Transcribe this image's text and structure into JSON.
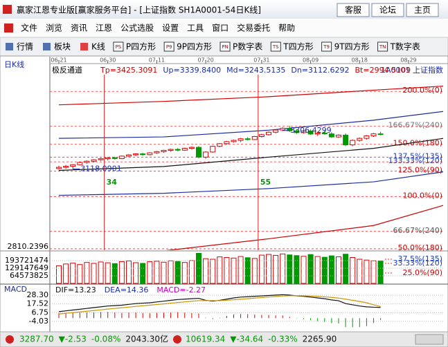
{
  "window": {
    "title": "赢家江恩专业版[赢家服务平台] - [上证指数  SH1A0001-54日K线]",
    "buttons": [
      "客服",
      "论坛",
      "主页"
    ]
  },
  "menu": [
    "文件",
    "浏览",
    "资讯",
    "江恩",
    "公式选股",
    "设置",
    "工具",
    "窗口",
    "交易委托",
    "帮助"
  ],
  "toolbar": [
    {
      "label": "行情"
    },
    {
      "label": "板块"
    },
    {
      "label": "K线"
    },
    {
      "icon": "PS",
      "label": "P四方形"
    },
    {
      "icon": "P9",
      "label": "9P四方形"
    },
    {
      "icon": "PN",
      "label": "P数字表"
    },
    {
      "icon": "TS",
      "label": "T四方形"
    },
    {
      "icon": "T9",
      "label": "9T四方形"
    },
    {
      "icon": "TN",
      "label": "T数字表"
    }
  ],
  "chart_data": {
    "type": "candlestick",
    "period_label": "日K线",
    "indicator": "极反通道",
    "header_items": [
      "Tp=3425.3091",
      "Up=3339.8400",
      "Md=3243.5135",
      "Dn=3112.6292",
      "Bt=2994.5109"
    ],
    "symbol": "1A0001 上证指数",
    "xlim": [
      -1.3,
      55
    ],
    "xticks": [
      {
        "value": 0,
        "label": "06-21"
      },
      {
        "value": 7,
        "label": "06-30"
      },
      {
        "value": 14,
        "label": "07-11"
      },
      {
        "value": 21,
        "label": "07-20"
      },
      {
        "value": 29,
        "label": "07-31"
      },
      {
        "value": 36,
        "label": "08-09"
      },
      {
        "value": 43,
        "label": "08-18"
      },
      {
        "value": 50,
        "label": "08-29"
      }
    ],
    "ylim": [
      2720,
      3580
    ],
    "bottom_label": "2810.2396",
    "up_color": "#e00000",
    "down_color": "#009a00",
    "open": [
      3120,
      3126,
      3131,
      3139,
      3150,
      3156,
      3163,
      3168,
      3173,
      3169,
      3181,
      3187,
      3192,
      3188,
      3197,
      3203,
      3209,
      3214,
      3210,
      3219,
      3224,
      3176,
      3201,
      3229,
      3242,
      3252,
      3258,
      3266,
      3262,
      3277,
      3286,
      3298,
      3309,
      3317,
      3305,
      3296,
      3304,
      3289,
      3294,
      3290,
      3275,
      3284,
      3236,
      3258,
      3268,
      3280,
      3290
    ],
    "high": [
      3134,
      3138,
      3142,
      3152,
      3160,
      3166,
      3172,
      3176,
      3178,
      3184,
      3190,
      3195,
      3197,
      3200,
      3206,
      3212,
      3217,
      3220,
      3222,
      3228,
      3230,
      3205,
      3232,
      3245,
      3256,
      3262,
      3270,
      3274,
      3280,
      3290,
      3302,
      3312,
      3322,
      3330,
      3312,
      3310,
      3312,
      3300,
      3305,
      3298,
      3288,
      3292,
      3262,
      3272,
      3284,
      3294,
      3300
    ],
    "low": [
      3115,
      3119,
      3118.0901,
      3135,
      3144,
      3150,
      3158,
      3160,
      3164,
      3166,
      3176,
      3182,
      3183,
      3185,
      3192,
      3198,
      3203,
      3205,
      3207,
      3213,
      3170,
      3168,
      3198,
      3225,
      3238,
      3247,
      3250,
      3258,
      3260,
      3272,
      3282,
      3293,
      3303,
      3300,
      3290,
      3292,
      3285,
      3280,
      3286,
      3270,
      3270,
      3230,
      3230,
      3252,
      3262,
      3275,
      3283
    ],
    "close": [
      3126,
      3131,
      3139,
      3150,
      3156,
      3163,
      3168,
      3173,
      3169,
      3181,
      3187,
      3192,
      3188,
      3197,
      3203,
      3209,
      3214,
      3210,
      3219,
      3224,
      3176,
      3201,
      3229,
      3242,
      3252,
      3258,
      3266,
      3262,
      3277,
      3286,
      3298,
      3309,
      3317,
      3305,
      3296,
      3304,
      3289,
      3294,
      3290,
      3275,
      3284,
      3236,
      3258,
      3268,
      3280,
      3290,
      3287.7
    ],
    "levels": [
      {
        "label": "200.0%(0)",
        "value": 3498,
        "color": "#d00000"
      },
      {
        "label": "166.67%(240)",
        "value": 3327,
        "color": "#777777"
      },
      {
        "label": "150.0%(180)",
        "value": 3239,
        "color": "#d00000"
      },
      {
        "label": "137.5%(135)",
        "value": 3176,
        "color": "#1a3cc8"
      },
      {
        "label": "133.33%(120)",
        "value": 3153,
        "color": "#1a3cc8"
      },
      {
        "label": "125.0%(90)",
        "value": 3107,
        "color": "#d00000"
      },
      {
        "label": "100.0%(0)",
        "value": 2983,
        "color": "#d00000"
      },
      {
        "label": "66.67%(240)",
        "value": 2812,
        "color": "#555555"
      },
      {
        "label": "50.0%(180)",
        "value": 2727,
        "color": "#d00000"
      }
    ],
    "channels": [
      {
        "color": "#d00000",
        "x": [
          0,
          15,
          30,
          45,
          55
        ],
        "values": [
          3432,
          3449,
          3472,
          3504,
          3524
        ]
      },
      {
        "color": "#1a2ca0",
        "x": [
          0,
          15,
          30,
          45,
          55
        ],
        "values": [
          3268,
          3275,
          3308,
          3357,
          3400
        ]
      },
      {
        "color": "#111111",
        "x": [
          0,
          15,
          30,
          45,
          55
        ],
        "values": [
          3111,
          3130,
          3176,
          3219,
          3268
        ]
      },
      {
        "color": "#1a2ca0",
        "x": [
          0,
          15,
          30,
          45,
          55
        ],
        "values": [
          2989,
          2999,
          3022,
          3055,
          3104
        ]
      },
      {
        "color": "#d00000",
        "x": [
          0,
          15,
          30,
          45,
          55
        ],
        "values": [
          2704,
          2717,
          2776,
          2841,
          2940
        ]
      }
    ],
    "annotations": [
      {
        "x": 2,
        "value": 3118.0901
      },
      {
        "x": 32,
        "value": 3306.4299
      }
    ],
    "cycle_lines": [
      {
        "x": 6.5,
        "label": 34
      },
      {
        "x": 28.5,
        "label": 55
      }
    ],
    "volume": {
      "values": [
        150000000,
        165000000,
        172000000,
        160000000,
        178000000,
        170000000,
        182000000,
        175000000,
        168000000,
        185000000,
        190000000,
        176000000,
        170000000,
        184000000,
        188000000,
        180000000,
        192000000,
        186000000,
        178000000,
        194000000,
        255000000,
        210000000,
        205000000,
        225000000,
        220000000,
        215000000,
        228000000,
        218000000,
        212000000,
        240000000,
        246000000,
        238000000,
        250000000,
        242000000,
        236000000,
        230000000,
        245000000,
        228000000,
        222000000,
        234000000,
        226000000,
        248000000,
        220000000,
        205000000,
        198000000,
        192000000,
        190000000
      ],
      "ylim": [
        0,
        258000000
      ],
      "yticks": [
        64573825,
        129147649,
        193721474
      ],
      "levels": [
        {
          "label": "37.5%(135)",
          "value": 205000000,
          "color": "#1a3cc8"
        },
        {
          "label": "33.33%(120)",
          "value": 170000000,
          "color": "#1a3cc8"
        },
        {
          "label": "25.0%(90)",
          "value": 88000000,
          "color": "#d00000"
        }
      ]
    },
    "macd": {
      "title": "MACD",
      "header_items": [
        "DIF=13.23",
        "DEA=14.36",
        "MACD=-2.27"
      ],
      "ylim": [
        -15.2,
        36.1
      ],
      "yticks": [
        {
          "value": 28.3,
          "label": "28.30"
        },
        17.52,
        6.75,
        -4.03
      ],
      "dif": [
        8,
        9,
        10,
        11,
        12,
        13,
        14,
        15,
        15.5,
        16,
        17,
        18,
        18.5,
        19,
        20,
        21,
        22,
        23,
        23.5,
        24,
        24.5,
        22,
        21,
        22,
        23.5,
        25,
        26,
        26.5,
        27,
        27.5,
        28,
        28.5,
        29,
        28.5,
        27.5,
        27,
        26,
        25,
        24,
        22.5,
        21.5,
        18,
        16.5,
        15,
        14,
        13.5,
        13.23
      ],
      "dea": [
        5,
        6,
        6.8,
        7.7,
        8.5,
        9.4,
        10.3,
        11.2,
        12,
        12.8,
        13.6,
        14.5,
        15.3,
        16,
        16.8,
        17.6,
        18.5,
        19.3,
        20.1,
        20.9,
        21.6,
        21.7,
        21.6,
        21.7,
        22.1,
        22.7,
        23.4,
        24,
        24.8,
        25.5,
        26.1,
        26.8,
        27.4,
        27.7,
        27.7,
        27.6,
        27.3,
        26.9,
        26.3,
        25.6,
        24.8,
        23.5,
        22.1,
        20.6,
        19,
        16.5,
        14.36
      ],
      "hist": [
        6,
        6,
        6.4,
        6.6,
        7,
        7.2,
        7.4,
        7.6,
        7,
        6.4,
        6.8,
        7,
        6.4,
        6,
        6.4,
        6.8,
        7,
        7.4,
        6.8,
        6.2,
        5.8,
        0.6,
        -1.2,
        0.6,
        2.8,
        4.6,
        5.2,
        5,
        4.4,
        4,
        3.8,
        3.4,
        3.2,
        1.6,
        -0.4,
        -1.2,
        -2.6,
        -3.8,
        -4.6,
        -6.2,
        -6.6,
        -11,
        -11.2,
        -11.2,
        -10,
        -6,
        -2.27
      ],
      "dif_color": "#111111",
      "dea_color": "#c89600"
    }
  },
  "status_bar": {
    "items": [
      {
        "text": "3287.70",
        "color": "#009a00"
      },
      {
        "text": "▼-2.53",
        "color": "#009a00"
      },
      {
        "text": "-0.08%",
        "color": "#009a00"
      },
      {
        "text": "2043.30亿",
        "color": "#111111",
        "gap": true
      },
      {
        "text": "10619.34",
        "color": "#009a00"
      },
      {
        "text": "▼-34.64",
        "color": "#009a00"
      },
      {
        "text": "-0.33%",
        "color": "#009a00"
      },
      {
        "text": "2265.90",
        "color": "#111111"
      }
    ]
  }
}
